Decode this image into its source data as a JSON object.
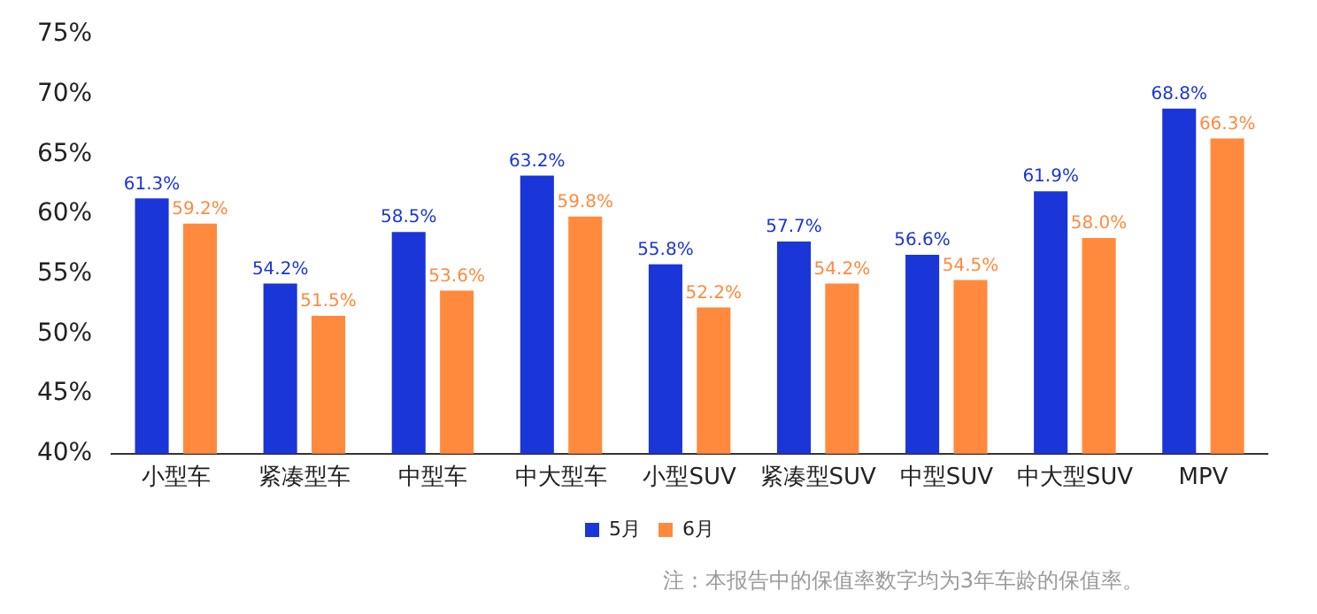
{
  "chart_data": {
    "type": "bar",
    "categories": [
      "小型车",
      "紧凑型车",
      "中型车",
      "中大型车",
      "小型SUV",
      "紧凑型SUV",
      "中型SUV",
      "中大型SUV",
      "MPV"
    ],
    "series": [
      {
        "name": "5月",
        "color": "#1a35d8",
        "values": [
          61.3,
          54.2,
          58.5,
          63.2,
          55.8,
          57.7,
          56.6,
          61.9,
          68.8
        ],
        "value_labels": [
          "61.3%",
          "54.2%",
          "58.5%",
          "63.2%",
          "55.8%",
          "57.7%",
          "56.6%",
          "61.9%",
          "68.8%"
        ]
      },
      {
        "name": "6月",
        "color": "#ff8a3d",
        "values": [
          59.2,
          51.5,
          53.6,
          59.8,
          52.2,
          54.2,
          54.5,
          58.0,
          66.3
        ],
        "value_labels": [
          "59.2%",
          "51.5%",
          "53.6%",
          "59.8%",
          "52.2%",
          "54.2%",
          "54.5%",
          "58.0%",
          "66.3%"
        ]
      }
    ],
    "ylim": [
      40,
      75
    ],
    "yticks": [
      {
        "value": 40,
        "label": "40%"
      },
      {
        "value": 45,
        "label": "45%"
      },
      {
        "value": 50,
        "label": "50%"
      },
      {
        "value": 55,
        "label": "55%"
      },
      {
        "value": 60,
        "label": "60%"
      },
      {
        "value": 65,
        "label": "65%"
      },
      {
        "value": 70,
        "label": "70%"
      },
      {
        "value": 75,
        "label": "75%"
      }
    ],
    "grid": false,
    "legend": "bottom",
    "annotations": [
      "注：本报告中的保值率数字均为3年车龄的保值率。"
    ]
  }
}
